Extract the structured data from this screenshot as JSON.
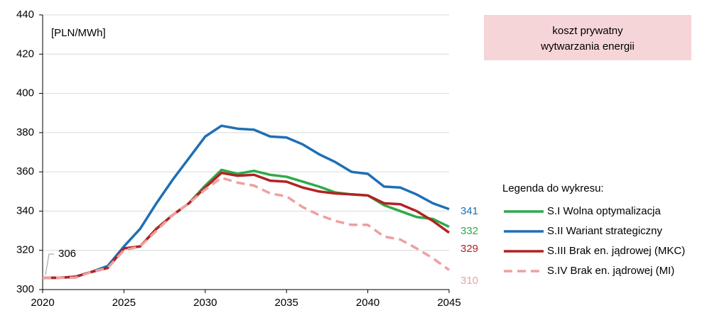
{
  "chart_data": {
    "type": "line",
    "y_label": "[PLN/MWh]",
    "annotation": [
      "koszt prywatny",
      "wytwarzania energii"
    ],
    "legend_title": "Legenda do wykresu:",
    "x": [
      2020,
      2021,
      2022,
      2023,
      2024,
      2025,
      2026,
      2027,
      2028,
      2029,
      2030,
      2031,
      2032,
      2033,
      2034,
      2035,
      2036,
      2037,
      2038,
      2039,
      2040,
      2041,
      2042,
      2043,
      2044,
      2045
    ],
    "xlim": [
      2020,
      2045
    ],
    "xticks": [
      2020,
      2025,
      2030,
      2035,
      2040,
      2045
    ],
    "ylim": [
      300,
      440
    ],
    "yticks": [
      300,
      320,
      340,
      360,
      380,
      400,
      420,
      440
    ],
    "grid": true,
    "series": [
      {
        "name": "S.I Wolna optymalizacja",
        "color": "#2eaa4a",
        "dashed": false,
        "values": [
          306,
          306,
          306.5,
          309,
          311,
          321,
          322,
          331,
          338,
          344,
          353,
          361,
          359,
          360.5,
          358.5,
          357.5,
          355,
          352.5,
          349.5,
          348.5,
          348,
          343,
          340,
          337,
          336,
          332
        ]
      },
      {
        "name": "S.II Wariant strategiczny",
        "color": "#1f6fb5",
        "dashed": false,
        "values": [
          306,
          306,
          306.5,
          309,
          312,
          322,
          331,
          344,
          356,
          367,
          378,
          383.5,
          382,
          381.5,
          378,
          377.5,
          374,
          369,
          365,
          360,
          359,
          352.5,
          352,
          348.5,
          344,
          341
        ]
      },
      {
        "name": "S.III Brak en. jądrowej (MKC)",
        "color": "#b22222",
        "dashed": false,
        "values": [
          306,
          306,
          306.5,
          309,
          311,
          321,
          322,
          331,
          338,
          344,
          352,
          359.5,
          358,
          358.5,
          355.5,
          355,
          352,
          350,
          349,
          348.5,
          348,
          344,
          343.5,
          340,
          335,
          329
        ]
      },
      {
        "name": "S.IV Brak en. jądrowej (MI)",
        "color": "#eea0a0",
        "dashed": true,
        "values": [
          306,
          306,
          306,
          309,
          311,
          320,
          322,
          330,
          338,
          344,
          351,
          357,
          354.5,
          353,
          349,
          347.5,
          342,
          338,
          335,
          333,
          333,
          327,
          325.5,
          321,
          316,
          310
        ]
      }
    ]
  }
}
